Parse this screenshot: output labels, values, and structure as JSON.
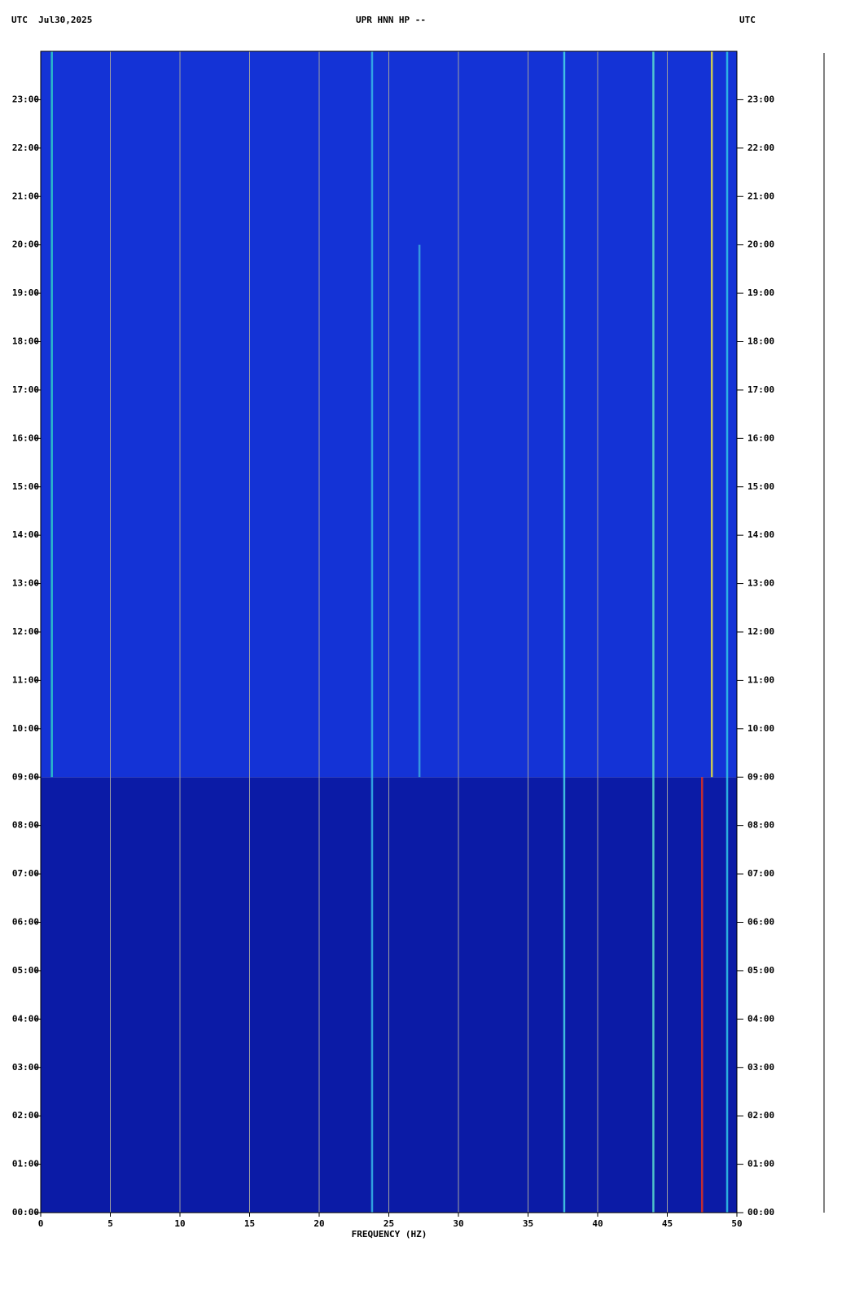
{
  "chart_data": {
    "type": "spectrogram",
    "title": "UPR HNN HP --",
    "left_header": "UTC  Jul30,2025",
    "right_header": "UTC",
    "x_label": "FREQUENCY (HZ)",
    "xlim": [
      0,
      50
    ],
    "xticks": [
      0,
      5,
      10,
      15,
      20,
      25,
      30,
      35,
      40,
      45,
      50
    ],
    "ylim": [
      0,
      24
    ],
    "yticks": [
      {
        "value": 0,
        "label": "00:00"
      },
      {
        "value": 1,
        "label": "01:00"
      },
      {
        "value": 2,
        "label": "02:00"
      },
      {
        "value": 3,
        "label": "03:00"
      },
      {
        "value": 4,
        "label": "04:00"
      },
      {
        "value": 5,
        "label": "05:00"
      },
      {
        "value": 6,
        "label": "06:00"
      },
      {
        "value": 7,
        "label": "07:00"
      },
      {
        "value": 8,
        "label": "08:00"
      },
      {
        "value": 9,
        "label": "09:00"
      },
      {
        "value": 10,
        "label": "10:00"
      },
      {
        "value": 11,
        "label": "11:00"
      },
      {
        "value": 12,
        "label": "12:00"
      },
      {
        "value": 13,
        "label": "13:00"
      },
      {
        "value": 14,
        "label": "14:00"
      },
      {
        "value": 15,
        "label": "15:00"
      },
      {
        "value": 16,
        "label": "16:00"
      },
      {
        "value": 17,
        "label": "17:00"
      },
      {
        "value": 18,
        "label": "18:00"
      },
      {
        "value": 19,
        "label": "19:00"
      },
      {
        "value": 20,
        "label": "20:00"
      },
      {
        "value": 21,
        "label": "21:00"
      },
      {
        "value": 22,
        "label": "22:00"
      },
      {
        "value": 23,
        "label": "23:00"
      }
    ],
    "grid": true,
    "regions": [
      {
        "from": 0,
        "to": 9,
        "color": "#0b1ba6"
      },
      {
        "from": 9,
        "to": 24,
        "color": "#1433d6"
      }
    ],
    "features": [
      {
        "freq": 0.8,
        "from": 9,
        "to": 24,
        "color": "#2fd0c8"
      },
      {
        "freq": 23.8,
        "from": 0,
        "to": 24,
        "color": "#37b8e8"
      },
      {
        "freq": 27.2,
        "from": 9,
        "to": 20,
        "color": "#3aa8e0"
      },
      {
        "freq": 37.6,
        "from": 0,
        "to": 24,
        "color": "#48d8e8"
      },
      {
        "freq": 44.0,
        "from": 0,
        "to": 24,
        "color": "#5ae0d0"
      },
      {
        "freq": 47.5,
        "from": 0,
        "to": 9,
        "color": "#e03020"
      },
      {
        "freq": 48.2,
        "from": 9,
        "to": 24,
        "color": "#e8e040"
      },
      {
        "freq": 49.3,
        "from": 0,
        "to": 24,
        "color": "#30c8e8"
      }
    ]
  }
}
